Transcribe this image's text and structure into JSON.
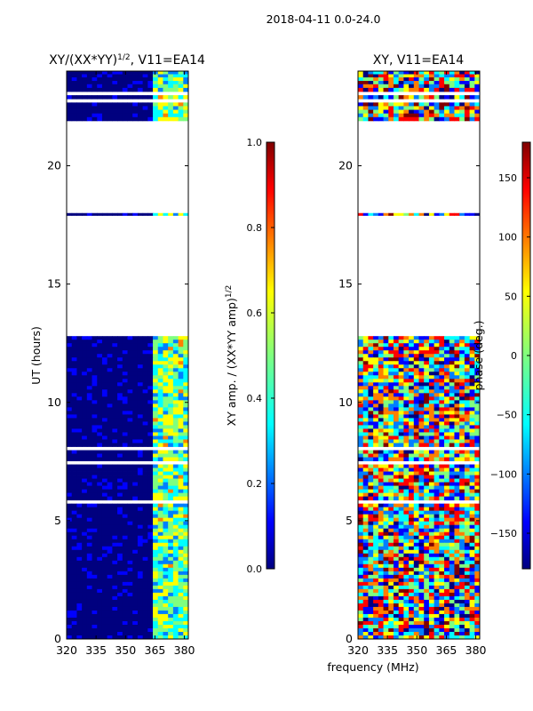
{
  "suptitle": "2018-04-11 0.0-24.0",
  "chart_data": [
    {
      "type": "heatmap",
      "title_prefix": "XY/(XX*YY)",
      "title_exp": "1/2",
      "title_suffix": ", V11=EA14",
      "xlabel": "",
      "ylabel": "UT (hours)",
      "xlim": [
        320,
        382
      ],
      "ylim": [
        0,
        24
      ],
      "xticks": [
        "320",
        "335",
        "350",
        "365",
        "380"
      ],
      "xtick_values": [
        320,
        335,
        350,
        365,
        380
      ],
      "yticks": [
        "0",
        "5",
        "10",
        "15",
        "20"
      ],
      "ytick_values": [
        0,
        5,
        10,
        15,
        20
      ],
      "colorbar": {
        "label_main": "XY amp. / (XX*YY amp)",
        "label_exp": "1/2",
        "ticks": [
          "0.0",
          "0.2",
          "0.4",
          "0.6",
          "0.8",
          "1.0"
        ],
        "tick_values": [
          0.0,
          0.2,
          0.4,
          0.6,
          0.8,
          1.0
        ],
        "range": [
          0,
          1
        ]
      }
    },
    {
      "type": "heatmap",
      "title_prefix": "XY, V11=EA14",
      "xlabel": "frequency (MHz)",
      "ylabel": "",
      "xlim": [
        320,
        382
      ],
      "ylim": [
        0,
        24
      ],
      "xticks": [
        "320",
        "335",
        "350",
        "365",
        "380"
      ],
      "xtick_values": [
        320,
        335,
        350,
        365,
        380
      ],
      "yticks": [
        "0",
        "5",
        "10",
        "15",
        "20"
      ],
      "ytick_values": [
        0,
        5,
        10,
        15,
        20
      ],
      "colorbar": {
        "label_main": "phase (deg.)",
        "ticks": [
          "−150",
          "−100",
          "−50",
          "0",
          "50",
          "100",
          "150"
        ],
        "tick_values": [
          -150,
          -100,
          -50,
          0,
          50,
          100,
          150
        ],
        "range": [
          -180,
          180
        ]
      }
    }
  ],
  "data_coverage_ut": [
    [
      0,
      12.8
    ],
    [
      17.9,
      18.0
    ],
    [
      21.9,
      23.6
    ],
    [
      23.6,
      24.0
    ]
  ],
  "colormap": [
    "#00007f",
    "#0000ff",
    "#007fff",
    "#00ffff",
    "#7fff7f",
    "#ffff00",
    "#ff7f00",
    "#ff0000",
    "#7f0000"
  ]
}
